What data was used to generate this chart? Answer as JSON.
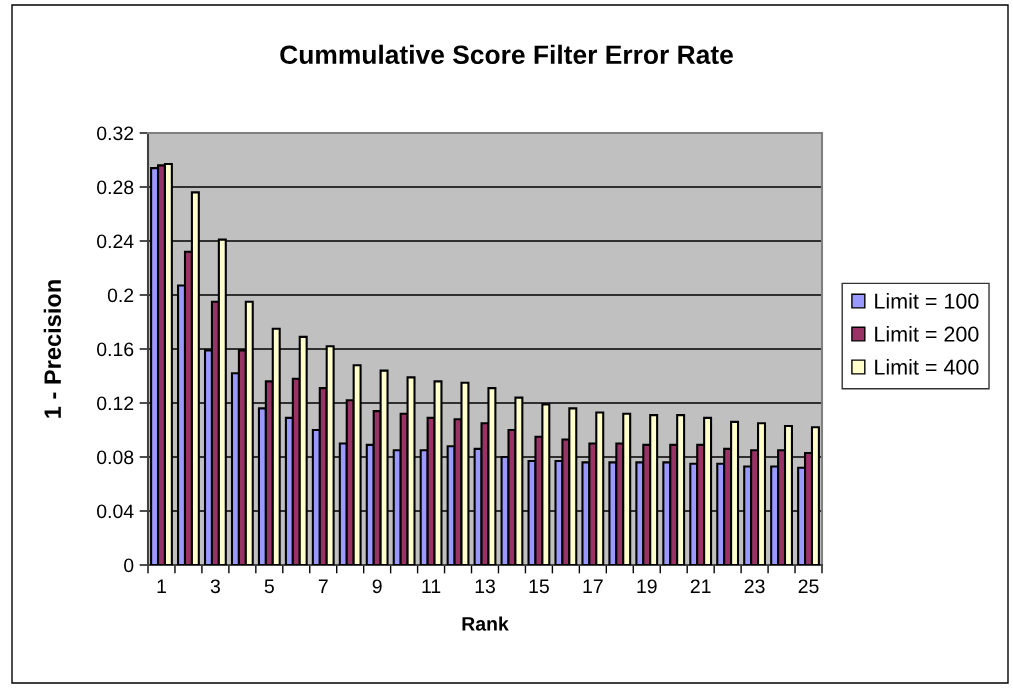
{
  "chart_data": {
    "type": "bar",
    "title": "Cummulative Score Filter Error Rate",
    "xlabel": "Rank",
    "ylabel": "1 - Precision",
    "categories": [
      "1",
      null,
      "3",
      null,
      "5",
      null,
      "7",
      null,
      "9",
      null,
      "11",
      null,
      "13",
      null,
      "15",
      null,
      "17",
      null,
      "19",
      null,
      "21",
      null,
      "23",
      null,
      "25"
    ],
    "series": [
      {
        "name": "Limit = 100",
        "color": "#9999ff",
        "values": [
          0.294,
          0.207,
          0.159,
          0.142,
          0.116,
          0.109,
          0.1,
          0.09,
          0.089,
          0.085,
          0.085,
          0.088,
          0.086,
          0.08,
          0.077,
          0.077,
          0.076,
          0.076,
          0.076,
          0.076,
          0.075,
          0.075,
          0.073,
          0.073,
          0.072
        ]
      },
      {
        "name": "Limit = 200",
        "color": "#993366",
        "values": [
          0.296,
          0.232,
          0.195,
          0.159,
          0.136,
          0.138,
          0.131,
          0.122,
          0.114,
          0.112,
          0.109,
          0.108,
          0.105,
          0.1,
          0.095,
          0.093,
          0.09,
          0.09,
          0.089,
          0.089,
          0.089,
          0.086,
          0.085,
          0.085,
          0.083
        ]
      },
      {
        "name": "Limit = 400",
        "color": "#ffffcc",
        "values": [
          0.297,
          0.276,
          0.241,
          0.195,
          0.175,
          0.169,
          0.162,
          0.148,
          0.144,
          0.139,
          0.136,
          0.135,
          0.131,
          0.124,
          0.119,
          0.116,
          0.113,
          0.112,
          0.111,
          0.111,
          0.109,
          0.106,
          0.105,
          0.103,
          0.102
        ]
      }
    ],
    "ylim": [
      0,
      0.32
    ],
    "yticks": [
      0,
      0.04,
      0.08,
      0.12,
      0.16,
      0.2,
      0.24,
      0.28,
      0.32
    ],
    "grid": "y",
    "legend": "right"
  }
}
